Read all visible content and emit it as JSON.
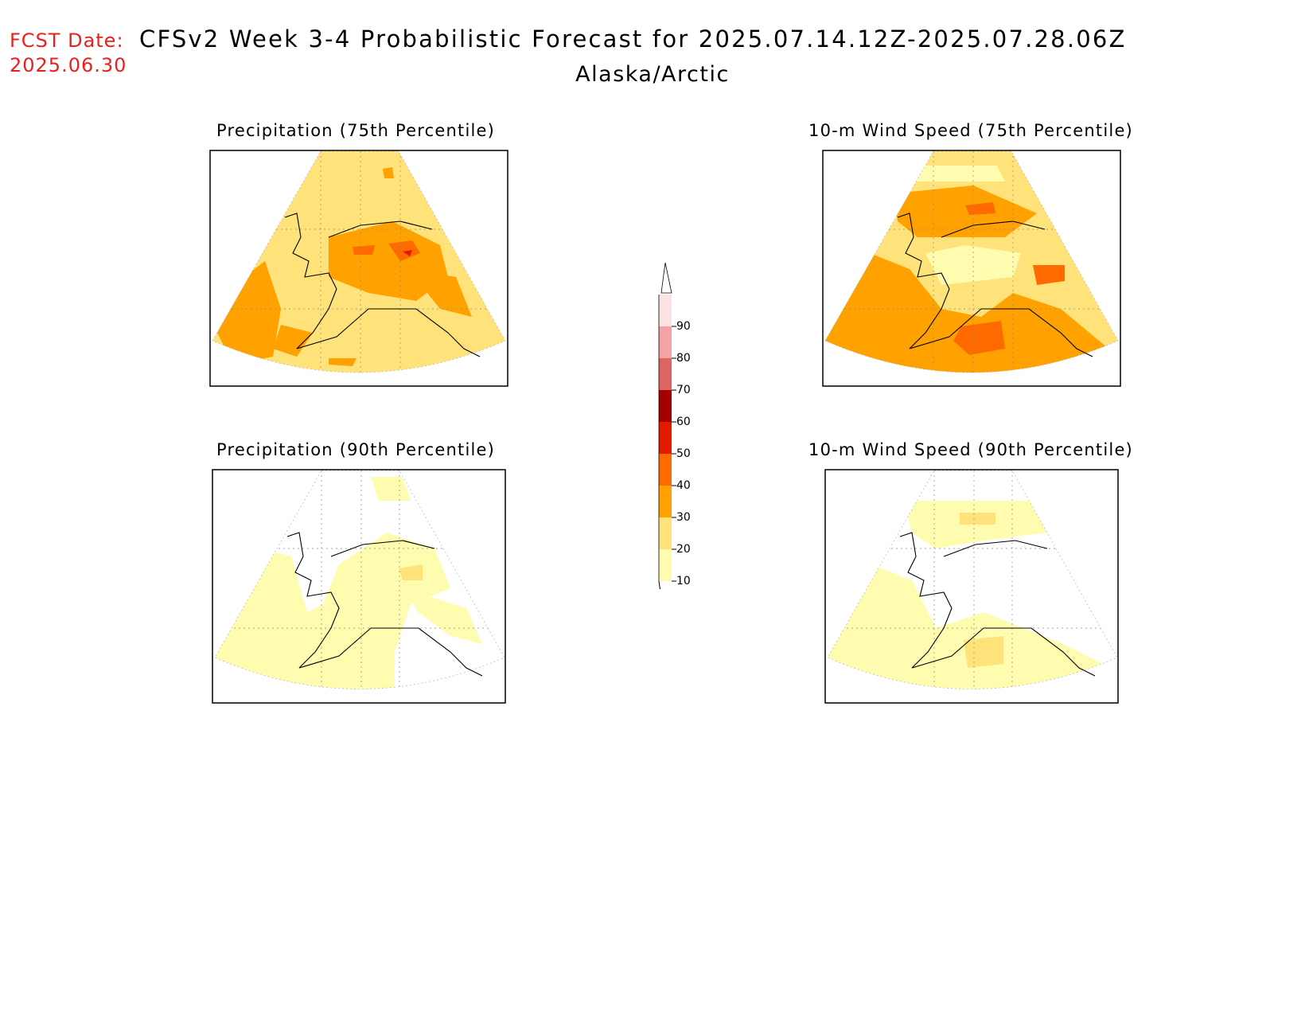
{
  "header": {
    "fcst_label": "FCST Date:",
    "fcst_date": "2025.06.30",
    "title": "CFSv2 Week 3-4 Probabilistic Forecast for 2025.07.14.12Z-2025.07.28.06Z",
    "subtitle": "Alaska/Arctic"
  },
  "panels": [
    {
      "title": "Precipitation (75th Percentile)",
      "fill_level": "high"
    },
    {
      "title": "10-m Wind Speed (75th Percentile)",
      "fill_level": "high"
    },
    {
      "title": "Precipitation (90th Percentile)",
      "fill_level": "low"
    },
    {
      "title": "10-m Wind Speed (90th Percentile)",
      "fill_level": "low"
    }
  ],
  "legend": {
    "levels": [
      "90",
      "80",
      "70",
      "60",
      "50",
      "40",
      "30",
      "20",
      "10"
    ],
    "colors": [
      "#fbe3e3",
      "#f3a3a3",
      "#de6363",
      "#a50000",
      "#e31a00",
      "#ff6a00",
      "#ffa200",
      "#ffe37a",
      "#fffcb0"
    ]
  }
}
